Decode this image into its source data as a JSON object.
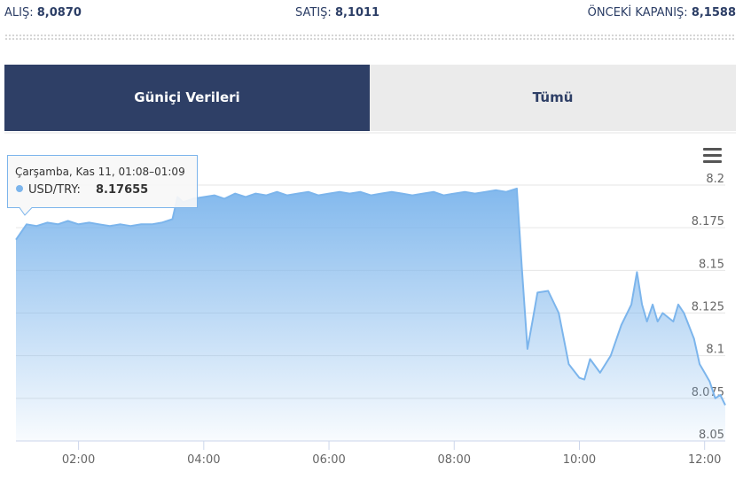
{
  "header": {
    "buy_label": "ALIŞ:",
    "buy_value": "8,0870",
    "sell_label": "SATIŞ:",
    "sell_value": "8,1011",
    "prev_label": "ÖNCEKİ KAPANIŞ:",
    "prev_value": "8,1588"
  },
  "tabs": [
    "Güniçi Verileri",
    "Tümü"
  ],
  "chart_data": {
    "type": "area",
    "color": "#7cb5ec",
    "x": [
      1.0,
      1.17,
      1.33,
      1.5,
      1.67,
      1.83,
      2.0,
      2.17,
      2.33,
      2.5,
      2.67,
      2.83,
      3.0,
      3.17,
      3.33,
      3.5,
      3.58,
      3.67,
      3.83,
      4.0,
      4.17,
      4.33,
      4.5,
      4.67,
      4.83,
      5.0,
      5.17,
      5.33,
      5.5,
      5.67,
      5.83,
      6.0,
      6.17,
      6.33,
      6.5,
      6.67,
      6.83,
      7.0,
      7.17,
      7.33,
      7.5,
      7.67,
      7.83,
      8.0,
      8.17,
      8.33,
      8.5,
      8.67,
      8.83,
      9.0,
      9.08,
      9.17,
      9.25,
      9.33,
      9.5,
      9.67,
      9.83,
      10.0,
      10.08,
      10.17,
      10.33,
      10.5,
      10.67,
      10.83,
      10.92,
      11.0,
      11.08,
      11.17,
      11.25,
      11.33,
      11.5,
      11.58,
      11.67,
      11.83,
      11.92,
      12.0,
      12.08,
      12.17,
      12.25,
      12.33
    ],
    "values": [
      8.168,
      8.177,
      8.176,
      8.178,
      8.177,
      8.179,
      8.177,
      8.178,
      8.177,
      8.176,
      8.177,
      8.176,
      8.177,
      8.177,
      8.178,
      8.18,
      8.193,
      8.19,
      8.192,
      8.193,
      8.194,
      8.192,
      8.195,
      8.193,
      8.195,
      8.194,
      8.196,
      8.194,
      8.195,
      8.196,
      8.194,
      8.195,
      8.196,
      8.195,
      8.196,
      8.194,
      8.195,
      8.196,
      8.195,
      8.194,
      8.195,
      8.196,
      8.194,
      8.195,
      8.196,
      8.195,
      8.196,
      8.197,
      8.196,
      8.198,
      8.152,
      8.104,
      8.12,
      8.137,
      8.138,
      8.125,
      8.095,
      8.087,
      8.086,
      8.098,
      8.09,
      8.1,
      8.118,
      8.13,
      8.149,
      8.13,
      8.12,
      8.13,
      8.12,
      8.125,
      8.12,
      8.13,
      8.125,
      8.11,
      8.095,
      8.09,
      8.085,
      8.075,
      8.077,
      8.071
    ],
    "xlim": [
      1,
      12.33
    ],
    "xticks": [
      {
        "value": 2,
        "label": "02:00"
      },
      {
        "value": 4,
        "label": "04:00"
      },
      {
        "value": 6,
        "label": "06:00"
      },
      {
        "value": 8,
        "label": "08:00"
      },
      {
        "value": 10,
        "label": "10:00"
      },
      {
        "value": 12,
        "label": "12:00"
      }
    ],
    "ylim": [
      8.05,
      8.2
    ],
    "yticks": [
      8.05,
      8.075,
      8.1,
      8.125,
      8.15,
      8.175,
      8.2
    ],
    "grid": true,
    "tooltip": {
      "header": "Çarşamba, Kas 11, 01:08–01:09",
      "label": "USD/TRY:",
      "value": 8.17655
    }
  }
}
